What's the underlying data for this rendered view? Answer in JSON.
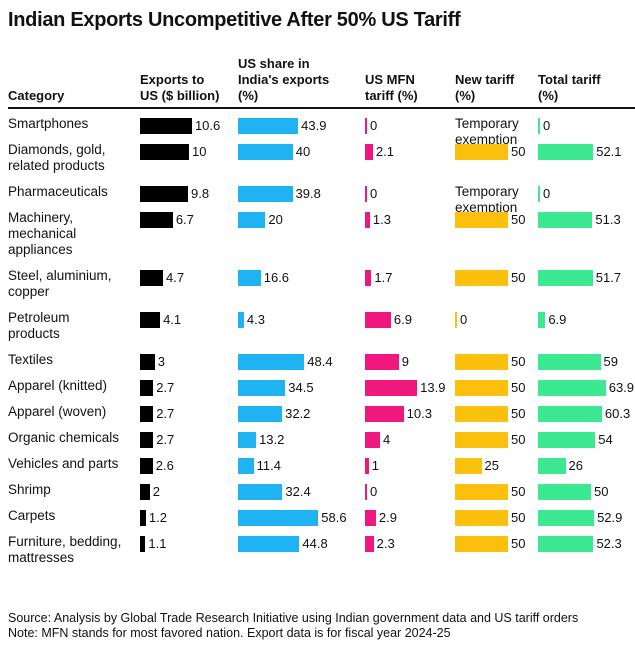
{
  "chart_data": {
    "type": "table",
    "title": "Indian Exports Uncompetitive After 50% US Tariff",
    "columns": [
      "Category",
      "Exports to\nUS ($ billion)",
      "US share in\nIndia's exports\n(%)",
      "US MFN\ntariff (%)",
      "New tariff\n(%)",
      "Total tariff\n(%)"
    ],
    "colors": {
      "exports": "#000000",
      "share": "#1fb3f2",
      "mfn": "#f0177f",
      "new": "#fbbf0e",
      "total": "#3ce891"
    },
    "rows": [
      {
        "category": "Smartphones",
        "exports": 10.6,
        "share": 43.9,
        "mfn": 0,
        "new": "Temporary\nexemption",
        "total": 0
      },
      {
        "category": "Diamonds, gold,\nrelated products",
        "exports": 10,
        "share": 40,
        "mfn": 2.1,
        "new": 50,
        "total": 52.1
      },
      {
        "category": "Pharmaceuticals",
        "exports": 9.8,
        "share": 39.8,
        "mfn": 0,
        "new": "Temporary\nexemption",
        "total": 0
      },
      {
        "category": "Machinery,\nmechanical\nappliances",
        "exports": 6.7,
        "share": 20,
        "mfn": 1.3,
        "new": 50,
        "total": 51.3
      },
      {
        "category": "Steel, aluminium,\ncopper",
        "exports": 4.7,
        "share": 16.6,
        "mfn": 1.7,
        "new": 50,
        "total": 51.7
      },
      {
        "category": "Petroleum\nproducts",
        "exports": 4.1,
        "share": 4.3,
        "mfn": 6.9,
        "new": 0,
        "total": 6.9
      },
      {
        "category": "Textiles",
        "exports": 3,
        "share": 48.4,
        "mfn": 9,
        "new": 50,
        "total": 59
      },
      {
        "category": "Apparel (knitted)",
        "exports": 2.7,
        "share": 34.5,
        "mfn": 13.9,
        "new": 50,
        "total": 63.9
      },
      {
        "category": "Apparel (woven)",
        "exports": 2.7,
        "share": 32.2,
        "mfn": 10.3,
        "new": 50,
        "total": 60.3
      },
      {
        "category": "Organic chemicals",
        "exports": 2.7,
        "share": 13.2,
        "mfn": 4,
        "new": 50,
        "total": 54
      },
      {
        "category": "Vehicles and parts",
        "exports": 2.6,
        "share": 11.4,
        "mfn": 1,
        "new": 25,
        "total": 26
      },
      {
        "category": "Shrimp",
        "exports": 2,
        "share": 32.4,
        "mfn": 0,
        "new": 50,
        "total": 50
      },
      {
        "category": "Carpets",
        "exports": 1.2,
        "share": 58.6,
        "mfn": 2.9,
        "new": 50,
        "total": 52.9
      },
      {
        "category": "Furniture, bedding,\nmattresses",
        "exports": 1.1,
        "share": 44.8,
        "mfn": 2.3,
        "new": 50,
        "total": 52.3
      }
    ],
    "source": "Source: Analysis by Global Trade Research Initiative using Indian government data and US tariff orders",
    "note": "Note: MFN stands for most favored nation. Export data is for fiscal year 2024-25"
  }
}
